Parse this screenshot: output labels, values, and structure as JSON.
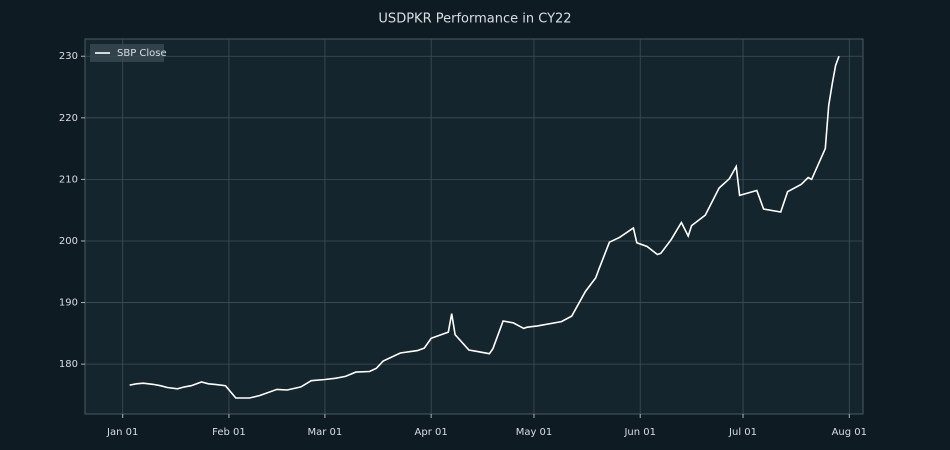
{
  "chart_data": {
    "type": "line",
    "title": "USDPKR Performance in CY22",
    "x": [
      "Jan 03",
      "Jan 05",
      "Jan 07",
      "Jan 10",
      "Jan 12",
      "Jan 14",
      "Jan 17",
      "Jan 19",
      "Jan 21",
      "Jan 24",
      "Jan 26",
      "Jan 28",
      "Jan 31",
      "Feb 03",
      "Feb 07",
      "Feb 10",
      "Feb 15",
      "Feb 18",
      "Feb 22",
      "Feb 25",
      "Mar 01",
      "Mar 04",
      "Mar 07",
      "Mar 10",
      "Mar 14",
      "Mar 16",
      "Mar 18",
      "Mar 23",
      "Mar 28",
      "Mar 30",
      "Apr 01",
      "Apr 06",
      "Apr 07",
      "Apr 08",
      "Apr 12",
      "Apr 14",
      "Apr 18",
      "Apr 19",
      "Apr 22",
      "Apr 25",
      "Apr 28",
      "Apr 29",
      "May 02",
      "May 09",
      "May 12",
      "May 16",
      "May 19",
      "May 20",
      "May 23",
      "May 26",
      "May 30",
      "May 31",
      "Jun 03",
      "Jun 06",
      "Jun 07",
      "Jun 10",
      "Jun 13",
      "Jun 15",
      "Jun 16",
      "Jun 20",
      "Jun 24",
      "Jun 27",
      "Jun 29",
      "Jun 30",
      "Jul 05",
      "Jul 07",
      "Jul 12",
      "Jul 14",
      "Jul 18",
      "Jul 20",
      "Jul 21",
      "Jul 25",
      "Jul 26",
      "Jul 27",
      "Jul 28",
      "Jul 29"
    ],
    "series": [
      {
        "name": "SBP Close",
        "color": "#ffffff",
        "values": [
          176.6,
          176.8,
          176.9,
          176.7,
          176.5,
          176.2,
          176.0,
          176.3,
          176.5,
          177.1,
          176.8,
          176.7,
          176.5,
          174.5,
          174.5,
          174.9,
          175.9,
          175.8,
          176.3,
          177.3,
          177.5,
          177.7,
          178.0,
          178.7,
          178.8,
          179.3,
          180.5,
          181.8,
          182.2,
          182.6,
          184.2,
          185.2,
          188.2,
          184.8,
          182.3,
          182.1,
          181.7,
          182.5,
          187.0,
          186.7,
          185.8,
          186.0,
          186.2,
          186.9,
          187.8,
          191.8,
          194.0,
          195.5,
          199.8,
          200.6,
          202.1,
          199.7,
          199.1,
          197.8,
          198.0,
          200.2,
          203.0,
          200.8,
          202.5,
          204.2,
          208.6,
          210.1,
          212.1,
          207.4,
          208.2,
          205.2,
          204.7,
          208.0,
          209.2,
          210.3,
          210.0,
          215.0,
          222.0,
          225.5,
          228.5,
          230.0
        ]
      }
    ],
    "xlim": [
      "Dec 21",
      "Aug 05"
    ],
    "xticks": [
      "Jan 01",
      "Feb 01",
      "Mar 01",
      "Apr 01",
      "May 01",
      "Jun 01",
      "Jul 01",
      "Aug 01"
    ],
    "ylim": [
      171.9,
      232.8
    ],
    "yticks": [
      180,
      190,
      200,
      210,
      220,
      230
    ],
    "grid": true,
    "legend": "upper left"
  }
}
